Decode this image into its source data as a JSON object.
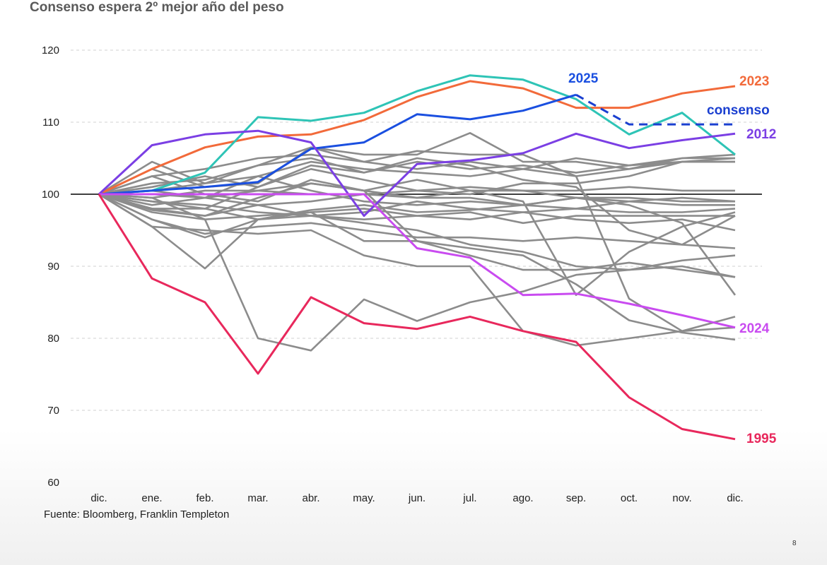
{
  "title": "Consenso espera 2º mejor año del peso",
  "source": "Fuente: Bloomberg, Franklin Templeton",
  "page_number": "8",
  "colors": {
    "gray": "#8c8c8c",
    "y2023": "#f26a3a",
    "y2025": "#1a4fe0",
    "consenso": "#1a3fd0",
    "y2012": "#7b3fe4",
    "y2024": "#c94bf0",
    "y1995": "#e8285c",
    "teal": "#2ec4b6",
    "baseline": "#000000",
    "grid": "#d0d0d0"
  },
  "chart_data": {
    "type": "line",
    "categories": [
      "dic.",
      "ene.",
      "feb.",
      "mar.",
      "abr.",
      "may.",
      "jun.",
      "jul.",
      "ago.",
      "sep.",
      "oct.",
      "nov.",
      "dic."
    ],
    "ylim": [
      60,
      120
    ],
    "yticks": [
      60,
      70,
      80,
      90,
      100,
      110,
      120
    ],
    "reference_line": 100,
    "grid": "dashed horizontal",
    "background_series": [
      [
        100,
        95.5,
        89.7,
        96.5,
        97.8,
        98.5,
        97.5,
        97.8,
        98.5,
        98.0,
        99.0,
        99.5,
        99.0
      ],
      [
        100,
        99.5,
        96.5,
        80.0,
        78.3,
        85.4,
        82.4,
        85.0,
        86.5,
        88.8,
        89.5,
        90.8,
        91.5
      ],
      [
        100,
        97.8,
        97.0,
        99.5,
        101.5,
        100.5,
        93.5,
        92.5,
        91.5,
        87.5,
        82.5,
        80.8,
        79.8
      ],
      [
        100,
        95.5,
        95.0,
        94.5,
        95.0,
        91.5,
        90.0,
        90.0,
        81.0,
        79.0,
        80.0,
        81.0,
        81.5
      ],
      [
        100,
        96.5,
        94.0,
        96.5,
        97.5,
        93.5,
        93.5,
        91.5,
        89.5,
        89.5,
        90.5,
        89.5,
        88.5
      ],
      [
        100,
        98.0,
        97.0,
        98.5,
        97.0,
        96.0,
        95.0,
        93.0,
        92.0,
        90.0,
        89.5,
        90.0,
        88.5
      ],
      [
        100,
        104.5,
        101.5,
        104.0,
        106.5,
        105.5,
        105.5,
        108.5,
        104.5,
        104.5,
        103.5,
        104.5,
        104.5
      ],
      [
        100,
        102.5,
        103.5,
        105.0,
        105.5,
        104.5,
        103.5,
        104.5,
        103.5,
        105.0,
        104.0,
        105.0,
        105.0
      ],
      [
        100,
        101.5,
        102.0,
        104.0,
        105.0,
        103.0,
        104.5,
        103.5,
        104.0,
        103.0,
        104.0,
        104.5,
        104.5
      ],
      [
        100,
        100.5,
        101.5,
        102.5,
        104.5,
        103.5,
        103.0,
        102.5,
        103.5,
        102.5,
        103.5,
        105.0,
        105.5
      ],
      [
        100,
        99.0,
        98.0,
        101.0,
        103.5,
        102.0,
        100.5,
        100.0,
        101.5,
        101.5,
        102.5,
        104.5,
        105.0
      ],
      [
        100,
        98.5,
        99.5,
        100.5,
        101.5,
        100.5,
        99.5,
        100.5,
        100.5,
        100.5,
        101.0,
        100.5,
        100.5
      ],
      [
        100,
        99.5,
        100.5,
        100.5,
        100.0,
        100.0,
        100.5,
        101.0,
        100.5,
        99.5,
        99.5,
        99.0,
        99.0
      ],
      [
        100,
        100.5,
        99.5,
        98.5,
        99.0,
        100.0,
        99.5,
        99.5,
        98.5,
        99.5,
        99.0,
        98.5,
        98.5
      ],
      [
        100,
        99.0,
        98.5,
        97.5,
        97.0,
        97.5,
        99.0,
        98.0,
        97.5,
        98.0,
        97.5,
        97.5,
        98.0
      ],
      [
        100,
        98.0,
        98.0,
        96.5,
        97.0,
        96.5,
        97.0,
        97.5,
        96.0,
        97.0,
        97.0,
        97.0,
        97.0
      ],
      [
        100,
        97.5,
        96.5,
        97.0,
        97.5,
        98.0,
        97.0,
        96.5,
        97.5,
        96.5,
        96.0,
        96.5,
        95.0
      ],
      [
        100,
        96.5,
        94.5,
        95.5,
        96.0,
        95.0,
        94.0,
        94.0,
        93.5,
        94.0,
        93.5,
        93.0,
        92.5
      ],
      [
        100,
        101.0,
        102.5,
        101.0,
        104.0,
        103.0,
        105.0,
        104.0,
        102.0,
        101.0,
        95.0,
        93.0,
        97.0
      ],
      [
        100,
        102.5,
        100.0,
        99.0,
        102.0,
        100.5,
        102.0,
        100.5,
        99.0,
        86.0,
        92.0,
        95.5,
        97.5
      ],
      [
        100,
        103.5,
        101.0,
        101.5,
        106.5,
        104.5,
        106.0,
        105.5,
        105.5,
        102.5,
        85.5,
        81.0,
        83.0
      ],
      [
        100,
        100.0,
        99.5,
        102.5,
        100.5,
        99.0,
        98.5,
        99.0,
        98.5,
        99.5,
        98.5,
        96.0,
        86.0
      ]
    ],
    "highlight_series": [
      {
        "name": "2023",
        "label": "2023",
        "color_key": "y2023",
        "dashed": false,
        "values": [
          100,
          103.5,
          106.5,
          108.0,
          108.3,
          110.3,
          113.5,
          115.7,
          114.7,
          112.0,
          112.0,
          114.0,
          115.0
        ]
      },
      {
        "name": "teal",
        "label": "",
        "color_key": "teal",
        "dashed": false,
        "values": [
          100,
          100.5,
          103.0,
          110.7,
          110.2,
          111.3,
          114.3,
          116.5,
          115.9,
          113.2,
          108.3,
          111.3,
          105.5
        ]
      },
      {
        "name": "2025",
        "label": "2025",
        "color_key": "y2025",
        "dashed": false,
        "values": [
          100,
          100.5,
          101.0,
          101.7,
          106.3,
          107.2,
          111.1,
          110.4,
          111.6,
          113.8,
          null,
          null,
          null
        ]
      },
      {
        "name": "consenso",
        "label": "consenso",
        "color_key": "consenso",
        "dashed": true,
        "values": [
          null,
          null,
          null,
          null,
          null,
          null,
          null,
          null,
          null,
          113.8,
          109.7,
          109.7,
          109.7
        ]
      },
      {
        "name": "2012",
        "label": "2012",
        "color_key": "y2012",
        "dashed": false,
        "values": [
          100,
          106.8,
          108.3,
          108.8,
          107.2,
          97.0,
          104.2,
          104.7,
          105.7,
          108.4,
          106.4,
          107.5,
          108.4
        ]
      },
      {
        "name": "2024",
        "label": "2024",
        "color_key": "y2024",
        "dashed": false,
        "values": [
          100,
          100.0,
          100.0,
          100.0,
          100.0,
          100.0,
          92.5,
          91.2,
          86.0,
          86.2,
          84.8,
          83.2,
          81.5
        ]
      },
      {
        "name": "1995",
        "label": "1995",
        "color_key": "y1995",
        "dashed": false,
        "values": [
          100,
          88.3,
          85.0,
          75.1,
          85.7,
          82.1,
          81.3,
          83.0,
          81.0,
          79.5,
          71.8,
          67.4,
          66.0
        ]
      }
    ]
  }
}
